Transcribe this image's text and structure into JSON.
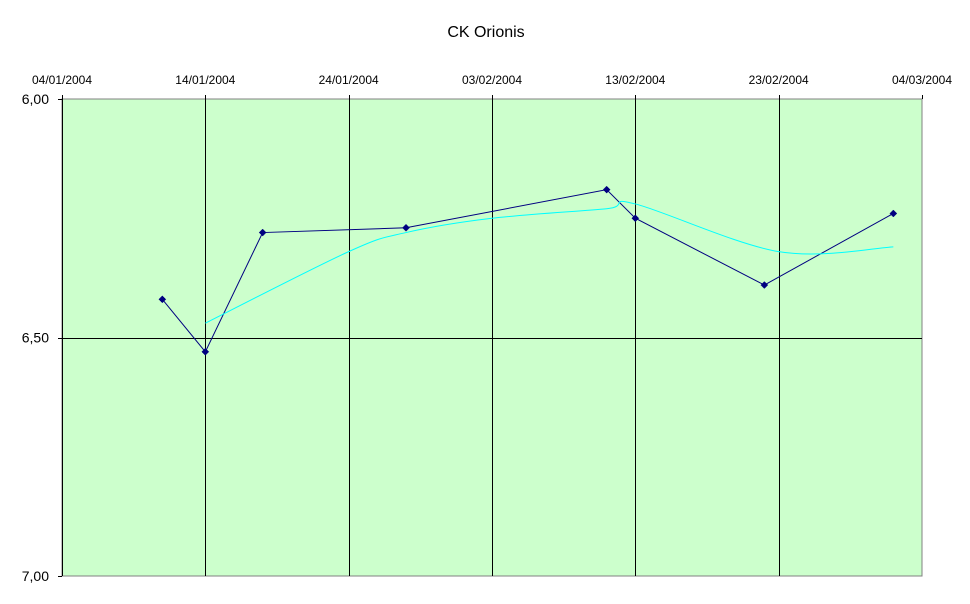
{
  "chart_data": {
    "type": "line",
    "title": "CK Orionis",
    "xlabel": "",
    "ylabel": "",
    "x_axis": {
      "type": "date",
      "min": "2004-01-04",
      "max": "2004-03-04",
      "position": "top",
      "tick_labels": [
        "04/01/2004",
        "14/01/2004",
        "24/01/2004",
        "03/02/2004",
        "13/02/2004",
        "23/02/2004",
        "04/03/2004"
      ],
      "tick_dates": [
        "2004-01-04",
        "2004-01-14",
        "2004-01-24",
        "2004-02-03",
        "2004-02-13",
        "2004-02-23",
        "2004-03-04"
      ]
    },
    "y_axis": {
      "min": 6.0,
      "max": 7.0,
      "reversed": true,
      "tick_values": [
        6.0,
        6.5,
        7.0
      ],
      "tick_labels": [
        "6,00",
        "6,50",
        "7,00"
      ]
    },
    "grid": true,
    "plot_background": "#ccffcc",
    "series": [
      {
        "color": "#000080",
        "marker": "diamond",
        "points": [
          {
            "x": "2004-01-11",
            "y": 6.42
          },
          {
            "x": "2004-01-14",
            "y": 6.53
          },
          {
            "x": "2004-01-18",
            "y": 6.28
          },
          {
            "x": "2004-01-28",
            "y": 6.27
          },
          {
            "x": "2004-02-11",
            "y": 6.19
          },
          {
            "x": "2004-02-13",
            "y": 6.25
          },
          {
            "x": "2004-02-22",
            "y": 6.39
          },
          {
            "x": "2004-03-02",
            "y": 6.24
          }
        ]
      },
      {
        "color": "#00ffff",
        "marker": "none",
        "points": [
          {
            "x": "2004-01-14",
            "y": 6.47
          },
          {
            "x": "2004-01-24",
            "y": 6.32
          },
          {
            "x": "2004-01-28",
            "y": 6.28
          },
          {
            "x": "2004-02-03",
            "y": 6.25
          },
          {
            "x": "2004-02-11",
            "y": 6.23
          },
          {
            "x": "2004-02-13",
            "y": 6.22
          },
          {
            "x": "2004-02-23",
            "y": 6.32
          },
          {
            "x": "2004-03-02",
            "y": 6.31
          }
        ]
      }
    ]
  }
}
